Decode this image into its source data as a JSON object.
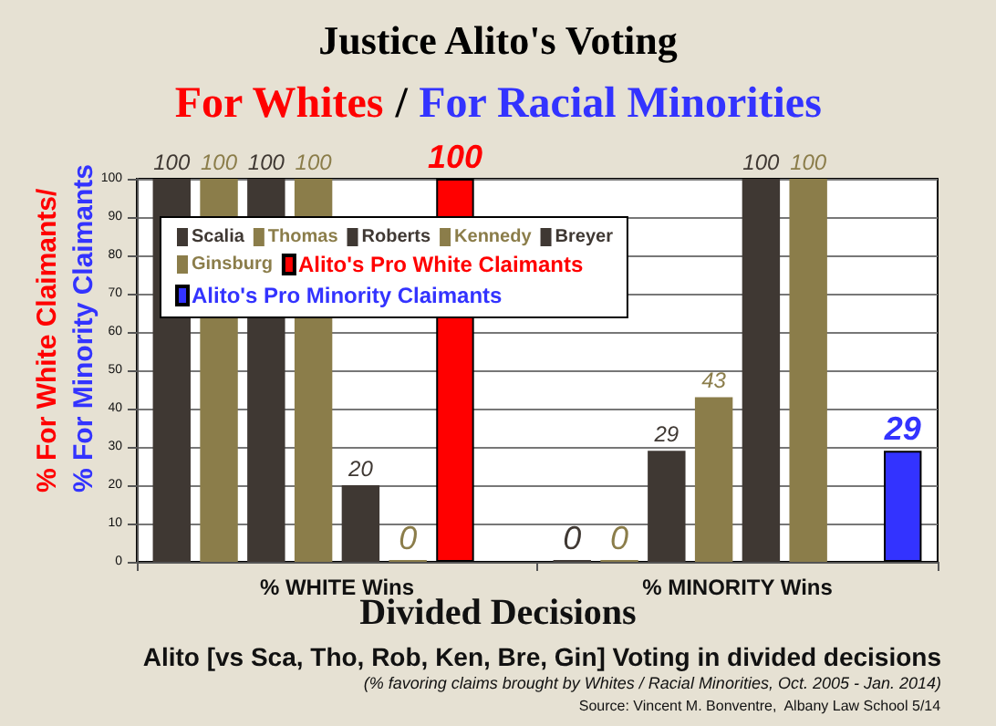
{
  "chart_data": {
    "type": "bar",
    "title": "Justice Alito's Voting",
    "subtitle": "For Whites / For Racial Minorities",
    "xlabel": "Divided Decisions",
    "ylabel": "% For White Claimants/ % For Minority Claimants",
    "categories": [
      "% WHITE Wins",
      "% MINORITY Wins"
    ],
    "series": [
      {
        "name": "Scalia",
        "color": "#3f3833",
        "values": [
          100,
          0
        ]
      },
      {
        "name": "Thomas",
        "color": "#8b7d4a",
        "values": [
          100,
          0
        ]
      },
      {
        "name": "Roberts",
        "color": "#3f3833",
        "values": [
          100,
          29
        ]
      },
      {
        "name": "Kennedy",
        "color": "#8b7d4a",
        "values": [
          100,
          43
        ]
      },
      {
        "name": "Breyer",
        "color": "#3f3833",
        "values": [
          20,
          100
        ]
      },
      {
        "name": "Ginsburg",
        "color": "#8b7d4a",
        "values": [
          0,
          100
        ]
      },
      {
        "name": "Alito's Pro White Claimants",
        "color": "#ff0000",
        "values": [
          100,
          null
        ]
      },
      {
        "name": "Alito's Pro Minority Claimants",
        "color": "#3333ff",
        "values": [
          null,
          29
        ]
      }
    ],
    "ylim": [
      0,
      100
    ],
    "yticks": [
      0,
      10,
      20,
      30,
      40,
      50,
      60,
      70,
      80,
      90,
      100
    ],
    "grid": "y",
    "legend": "top left",
    "data_labels": true,
    "annotations": [
      "Alito [vs Sca, Tho, Rob, Ken, Bre, Gin] Voting in divided decisions",
      "(% favoring claims brought by Whites / Racial Minorities, Oct. 2005 - Jan. 2014)",
      "Source: Vincent M. Bonventre,  Albany Law School 5/14"
    ]
  }
}
